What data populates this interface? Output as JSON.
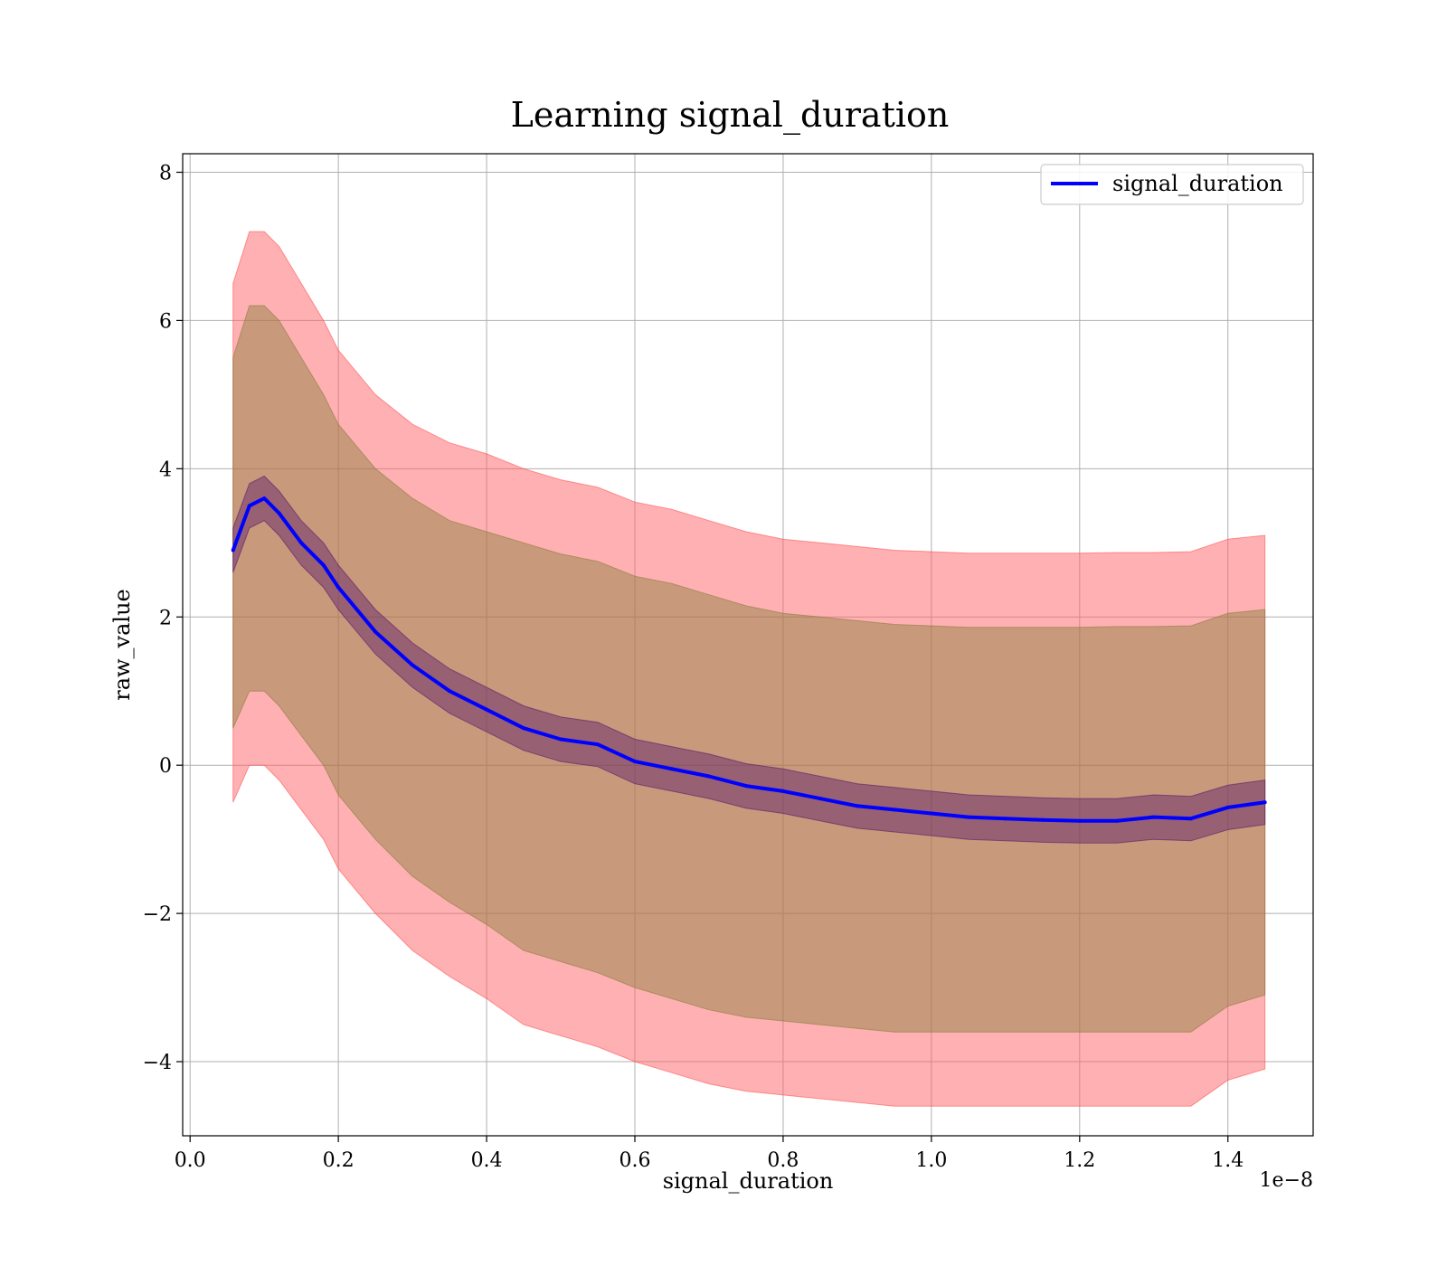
{
  "chart_data": {
    "type": "line",
    "title": "Learning signal_duration",
    "xlabel": "signal_duration",
    "ylabel": "raw_value",
    "x_offset_label": "1e−8",
    "xlim": [
      -0.01,
      1.515
    ],
    "ylim": [
      -5.0,
      8.25
    ],
    "xticks": [
      0.0,
      0.2,
      0.4,
      0.6,
      0.8,
      1.0,
      1.2,
      1.4
    ],
    "xtick_labels": [
      "0.0",
      "0.2",
      "0.4",
      "0.6",
      "0.8",
      "1.0",
      "1.2",
      "1.4"
    ],
    "yticks": [
      -4,
      -2,
      0,
      2,
      4,
      6,
      8
    ],
    "ytick_labels": [
      "−4",
      "−2",
      "0",
      "2",
      "4",
      "6",
      "8"
    ],
    "grid": true,
    "legend_position": "top-right",
    "colors": {
      "line": "#0000ff",
      "outer_band": "#ff0000",
      "middle_band": "#8b7f3f",
      "inner_band": "#6b2d6b"
    },
    "x": [
      0.058,
      0.08,
      0.1,
      0.12,
      0.15,
      0.18,
      0.2,
      0.25,
      0.3,
      0.35,
      0.4,
      0.45,
      0.5,
      0.55,
      0.6,
      0.65,
      0.7,
      0.75,
      0.8,
      0.85,
      0.9,
      0.95,
      1.0,
      1.05,
      1.1,
      1.15,
      1.2,
      1.25,
      1.3,
      1.35,
      1.4,
      1.45
    ],
    "series": [
      {
        "name": "signal_duration",
        "values": [
          2.9,
          3.5,
          3.6,
          3.4,
          3.0,
          2.7,
          2.4,
          1.8,
          1.35,
          1.0,
          0.75,
          0.5,
          0.35,
          0.28,
          0.05,
          -0.05,
          -0.15,
          -0.28,
          -0.35,
          -0.45,
          -0.55,
          -0.6,
          -0.65,
          -0.7,
          -0.72,
          -0.74,
          -0.75,
          -0.75,
          -0.7,
          -0.72,
          -0.57,
          -0.5
        ]
      }
    ],
    "bands": {
      "outer_upper": [
        6.5,
        7.2,
        7.2,
        7.0,
        6.5,
        6.0,
        5.6,
        5.0,
        4.6,
        4.35,
        4.2,
        4.0,
        3.85,
        3.75,
        3.55,
        3.45,
        3.3,
        3.15,
        3.05,
        3.0,
        2.95,
        2.9,
        2.88,
        2.86,
        2.86,
        2.86,
        2.86,
        2.87,
        2.87,
        2.88,
        3.05,
        3.1
      ],
      "middle_upper": [
        5.5,
        6.2,
        6.2,
        6.0,
        5.5,
        5.0,
        4.6,
        4.0,
        3.6,
        3.3,
        3.15,
        3.0,
        2.85,
        2.75,
        2.55,
        2.45,
        2.3,
        2.15,
        2.05,
        2.0,
        1.95,
        1.9,
        1.88,
        1.86,
        1.86,
        1.86,
        1.86,
        1.87,
        1.87,
        1.88,
        2.05,
        2.1
      ],
      "inner_upper": [
        3.2,
        3.8,
        3.9,
        3.7,
        3.3,
        3.0,
        2.7,
        2.1,
        1.65,
        1.3,
        1.05,
        0.8,
        0.65,
        0.58,
        0.35,
        0.25,
        0.15,
        0.02,
        -0.05,
        -0.15,
        -0.25,
        -0.3,
        -0.35,
        -0.4,
        -0.42,
        -0.44,
        -0.45,
        -0.45,
        -0.4,
        -0.42,
        -0.27,
        -0.2
      ],
      "inner_lower": [
        2.6,
        3.2,
        3.3,
        3.1,
        2.7,
        2.4,
        2.1,
        1.5,
        1.05,
        0.7,
        0.45,
        0.2,
        0.05,
        -0.02,
        -0.25,
        -0.35,
        -0.45,
        -0.58,
        -0.65,
        -0.75,
        -0.85,
        -0.9,
        -0.95,
        -1.0,
        -1.02,
        -1.04,
        -1.05,
        -1.05,
        -1.0,
        -1.02,
        -0.87,
        -0.8
      ],
      "middle_lower": [
        0.5,
        1.0,
        1.0,
        0.8,
        0.4,
        0.0,
        -0.4,
        -1.0,
        -1.5,
        -1.85,
        -2.15,
        -2.5,
        -2.65,
        -2.8,
        -3.0,
        -3.15,
        -3.3,
        -3.4,
        -3.45,
        -3.5,
        -3.55,
        -3.6,
        -3.6,
        -3.6,
        -3.6,
        -3.6,
        -3.6,
        -3.6,
        -3.6,
        -3.6,
        -3.25,
        -3.1
      ],
      "outer_lower": [
        -0.5,
        0.0,
        0.0,
        -0.2,
        -0.6,
        -1.0,
        -1.4,
        -2.0,
        -2.5,
        -2.85,
        -3.15,
        -3.5,
        -3.65,
        -3.8,
        -4.0,
        -4.15,
        -4.3,
        -4.4,
        -4.45,
        -4.5,
        -4.55,
        -4.6,
        -4.6,
        -4.6,
        -4.6,
        -4.6,
        -4.6,
        -4.6,
        -4.6,
        -4.6,
        -4.25,
        -4.1
      ]
    }
  }
}
